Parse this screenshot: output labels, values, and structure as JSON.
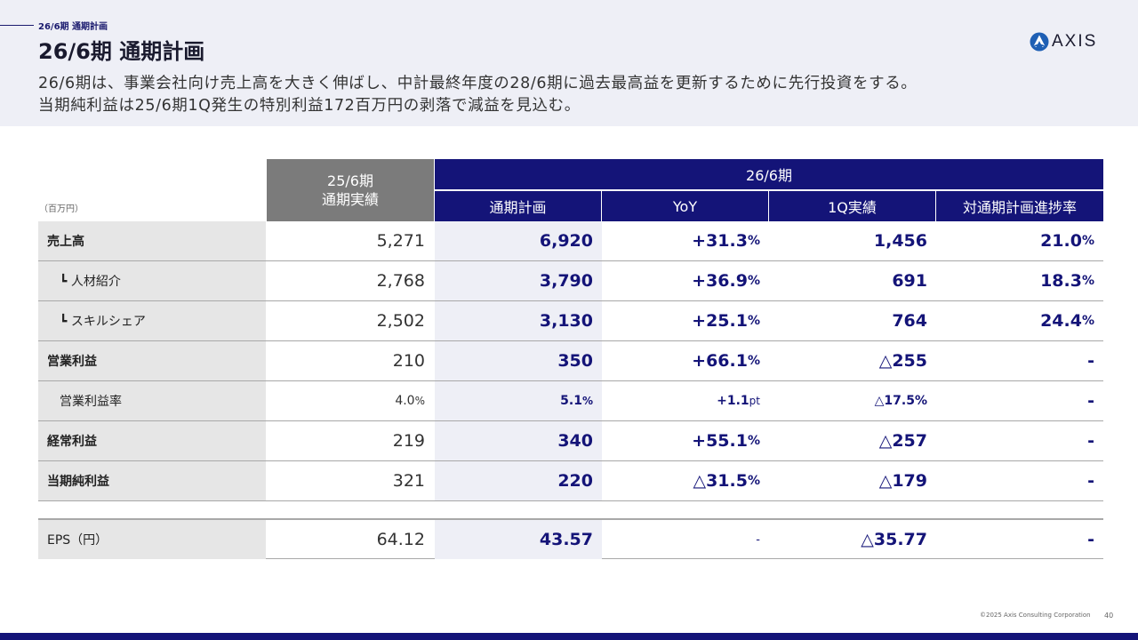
{
  "header": {
    "section_label": "26/6期 通期計画",
    "title": "26/6期 通期計画",
    "subtitle_line1": "26/6期は、事業会社向け売上高を大きく伸ばし、中計最終年度の28/6期に過去最高益を更新するために先行投資をする。",
    "subtitle_line2": "当期純利益は25/6期1Q発生の特別利益172百万円の剥落で減益を見込む。"
  },
  "logo": {
    "text": "AXIS",
    "icon": "axis-logo-icon"
  },
  "table": {
    "unit": "（百万円）",
    "prev_header_line1": "25/6期",
    "prev_header_line2": "通期実績",
    "group_header": "26/6期",
    "sub_headers": [
      "通期計画",
      "YoY",
      "1Q実績",
      "対通期計画進捗率"
    ],
    "rows": [
      {
        "label": "売上高",
        "prev": "5,271",
        "plan": "6,920",
        "yoy": "+31.3",
        "yoy_unit": "%",
        "q1": "1,456",
        "progress": "21.0",
        "progress_unit": "%"
      },
      {
        "label": "┗ 人材紹介",
        "prev": "2,768",
        "plan": "3,790",
        "yoy": "+36.9",
        "yoy_unit": "%",
        "q1": "691",
        "progress": "18.3",
        "progress_unit": "%"
      },
      {
        "label": "┗ スキルシェア",
        "prev": "2,502",
        "plan": "3,130",
        "yoy": "+25.1",
        "yoy_unit": "%",
        "q1": "764",
        "progress": "24.4",
        "progress_unit": "%"
      },
      {
        "label": "営業利益",
        "prev": "210",
        "plan": "350",
        "yoy": "+66.1",
        "yoy_unit": "%",
        "q1": "△255",
        "progress": "-",
        "progress_unit": ""
      },
      {
        "label": "営業利益率",
        "prev": "4.0",
        "prev_unit": "%",
        "plan": "5.1",
        "plan_unit": "%",
        "yoy": "+1.1",
        "yoy_unit": "pt",
        "q1": "△17.5%",
        "progress": "-",
        "progress_unit": ""
      },
      {
        "label": "経常利益",
        "prev": "219",
        "plan": "340",
        "yoy": "+55.1",
        "yoy_unit": "%",
        "q1": "△257",
        "progress": "-",
        "progress_unit": ""
      },
      {
        "label": "当期純利益",
        "prev": "321",
        "plan": "220",
        "yoy": "△31.5",
        "yoy_unit": "%",
        "q1": "△179",
        "progress": "-",
        "progress_unit": ""
      }
    ],
    "eps": {
      "label": "EPS（円）",
      "prev": "64.12",
      "plan": "43.57",
      "yoy": "-",
      "q1": "△35.77",
      "progress": "-"
    }
  },
  "footer": {
    "copyright": "©2025 Axis Consulting Corporation",
    "page": "40"
  }
}
